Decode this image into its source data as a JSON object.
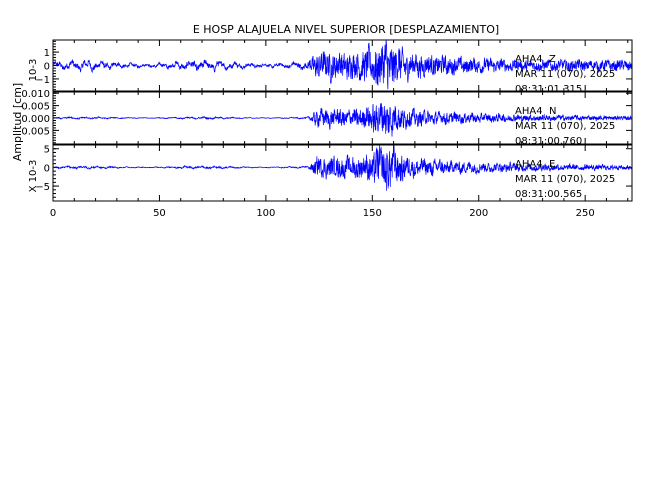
{
  "chart_data": {
    "type": "line",
    "title": "E HOSP ALAJUELA NIVEL SUPERIOR [DESPLAZAMIENTO]",
    "ylabel": "Amplitud [cm]",
    "xlim": [
      0,
      272
    ],
    "x_ticks": [
      0,
      50,
      100,
      150,
      200,
      250
    ],
    "line_color": "#0000ff",
    "axis_color": "#000000",
    "panels": [
      {
        "component": "Z",
        "station_label": "AHA4",
        "component_label": "Z",
        "date_label": "MAR 11 (070), 2025",
        "time_label": "08:31:01.315",
        "exponent_label": "10-3",
        "ylim": [
          -1.9,
          1.9
        ],
        "y_ticks": [
          -1,
          0,
          1
        ],
        "y_tick_labels": [
          "−1",
          "0",
          "1"
        ],
        "background_amplitude": 0.55,
        "event_onset_s": 120,
        "peak_time_s": 156,
        "peak_amplitude": 1.8
      },
      {
        "component": "N",
        "station_label": "AHA4",
        "component_label": "N",
        "date_label": "MAR 11 (070), 2025",
        "time_label": "08:31:00.760",
        "exponent_label": "",
        "ylim": [
          -0.0105,
          0.0105
        ],
        "y_ticks": [
          -0.005,
          0.0,
          0.005,
          0.01
        ],
        "y_tick_labels": [
          "−0.005",
          "0.000",
          "0.005",
          "0.010"
        ],
        "background_amplitude": 0.0006,
        "event_onset_s": 120,
        "peak_time_s": 156,
        "peak_amplitude": 0.0095
      },
      {
        "component": "E",
        "station_label": "AHA4",
        "component_label": "E",
        "date_label": "MAR 11 (070), 2025",
        "time_label": "08:31:00.565",
        "exponent_label": "X 10-3",
        "ylim": [
          -9,
          6
        ],
        "y_ticks": [
          -5,
          0,
          5
        ],
        "y_tick_labels": [
          "−5",
          "0",
          "5"
        ],
        "background_amplitude": 0.5,
        "event_onset_s": 120,
        "peak_time_s": 156,
        "peak_amplitude": 7
      }
    ]
  }
}
